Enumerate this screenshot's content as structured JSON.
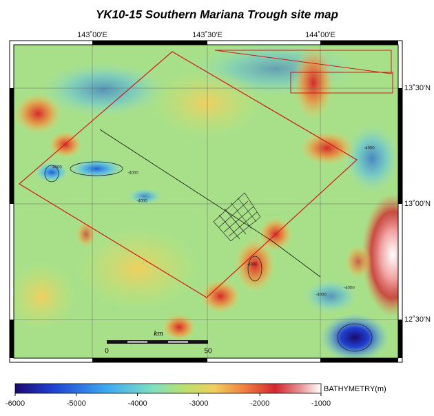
{
  "title": "YK10-15 Southern Mariana Trough site map",
  "map": {
    "lon_labels": [
      "143˚00'E",
      "143˚30'E",
      "144˚00'E"
    ],
    "lat_labels": [
      "13˚30'N",
      "13˚00'N",
      "12˚30'N"
    ],
    "scale_bar": {
      "unit": "km",
      "labels": [
        "0",
        "50"
      ]
    },
    "contour_labels": [
      "-4000",
      "-4000",
      "-4000",
      "-4000",
      "-4000",
      "-4000",
      "-4000"
    ]
  },
  "colorbar": {
    "label": "BATHYMETRY(m)",
    "lim": [
      -6000,
      -1000
    ],
    "ticks": [
      -6000,
      -5000,
      -4000,
      -3000,
      -2000,
      -1000
    ]
  }
}
